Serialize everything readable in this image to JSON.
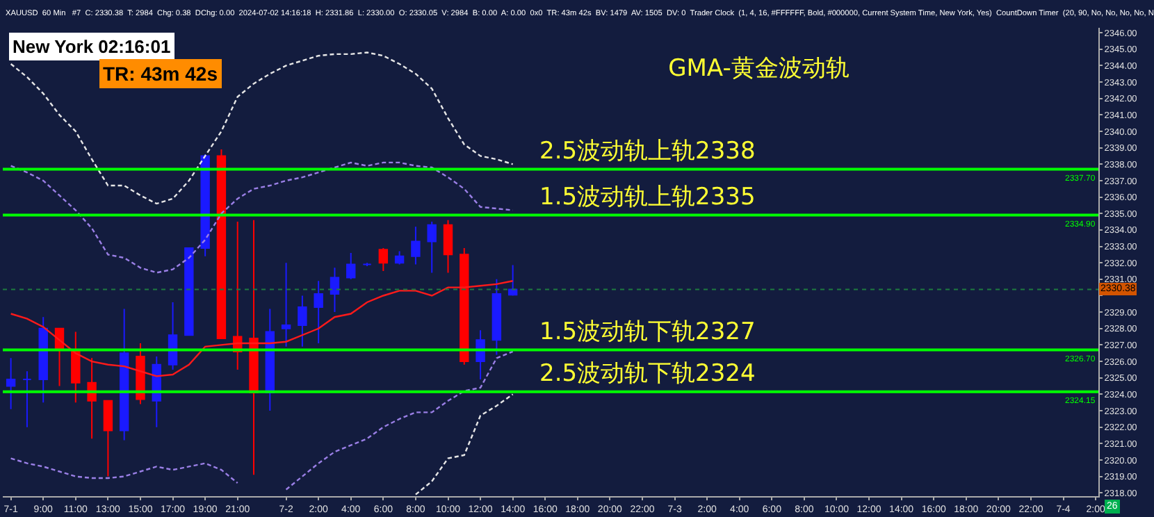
{
  "chart_data": {
    "type": "candlestick",
    "title": "GMA-黄金波动轨",
    "x": [
      "2024-07-01T07:00",
      "2024-07-01T08:00",
      "2024-07-01T09:00",
      "2024-07-01T10:00",
      "2024-07-01T11:00",
      "2024-07-01T12:00",
      "2024-07-01T13:00",
      "2024-07-01T14:00",
      "2024-07-01T15:00",
      "2024-07-01T16:00",
      "2024-07-01T17:00",
      "2024-07-01T18:00",
      "2024-07-01T19:00",
      "2024-07-01T20:00",
      "2024-07-01T21:00",
      "2024-07-01T22:00",
      "2024-07-01T23:00",
      "2024-07-02T00:00",
      "2024-07-02T01:00",
      "2024-07-02T02:00",
      "2024-07-02T03:00",
      "2024-07-02T04:00",
      "2024-07-02T05:00",
      "2024-07-02T06:00",
      "2024-07-02T07:00",
      "2024-07-02T08:00",
      "2024-07-02T09:00",
      "2024-07-02T10:00",
      "2024-07-02T11:00",
      "2024-07-02T12:00",
      "2024-07-02T13:00",
      "2024-07-02T14:00"
    ],
    "series": [
      {
        "color": "#1a1aff",
        "x": [
          "2024-07-01T07:00",
          "2024-07-01T08:00",
          "2024-07-01T09:00",
          "2024-07-01T14:00",
          "2024-07-01T16:00",
          "2024-07-01T17:00",
          "2024-07-01T18:00",
          "2024-07-01T19:00",
          "2024-07-01T23:00",
          "2024-07-02T00:00",
          "2024-07-02T01:00",
          "2024-07-02T02:00",
          "2024-07-02T03:00",
          "2024-07-02T04:00",
          "2024-07-02T05:00",
          "2024-07-02T07:00",
          "2024-07-02T08:00",
          "2024-07-02T09:00",
          "2024-07-02T12:00",
          "2024-07-02T13:00",
          "2024-07-02T14:00"
        ],
        "ohlc": [
          [
            2324.5,
            2326.2,
            2323.1,
            2324.9
          ],
          [
            2324.9,
            2325.4,
            2322.0,
            2324.9
          ],
          [
            2324.9,
            2328.7,
            2323.5,
            2328.0
          ],
          [
            2321.8,
            2329.2,
            2321.2,
            2326.5
          ],
          [
            2323.6,
            2326.3,
            2322.0,
            2325.8
          ],
          [
            2325.8,
            2329.6,
            2325.5,
            2327.6
          ],
          [
            2327.6,
            2332.9,
            2327.6,
            2332.9
          ],
          [
            2332.9,
            2338.6,
            2332.4,
            2338.5
          ],
          [
            2324.1,
            2329.2,
            2323.0,
            2327.8
          ],
          [
            2328.0,
            2332.0,
            2326.9,
            2328.2
          ],
          [
            2328.2,
            2330.0,
            2326.9,
            2329.3
          ],
          [
            2329.3,
            2330.9,
            2327.1,
            2330.1
          ],
          [
            2330.1,
            2331.7,
            2329.0,
            2331.1
          ],
          [
            2331.1,
            2332.6,
            2331.0,
            2331.9
          ],
          [
            2331.9,
            2332.0,
            2331.8,
            2331.9
          ],
          [
            2332.0,
            2332.7,
            2331.9,
            2332.4
          ],
          [
            2332.4,
            2334.2,
            2331.9,
            2333.3
          ],
          [
            2333.3,
            2334.5,
            2331.4,
            2334.3
          ],
          [
            2326.0,
            2327.9,
            2324.9,
            2327.3
          ],
          [
            2327.3,
            2331.0,
            2326.4,
            2330.1
          ],
          [
            2330.05,
            2331.86,
            2330.0,
            2330.38
          ]
        ]
      },
      {
        "color": "#ff0000",
        "x": [
          "2024-07-01T10:00",
          "2024-07-01T11:00",
          "2024-07-01T12:00",
          "2024-07-01T13:00",
          "2024-07-01T15:00",
          "2024-07-01T20:00",
          "2024-07-01T21:00",
          "2024-07-01T22:00",
          "2024-07-02T06:00",
          "2024-07-02T10:00",
          "2024-07-02T11:00"
        ],
        "ohlc": [
          [
            2328.0,
            2328.0,
            2324.5,
            2326.8
          ],
          [
            2326.7,
            2327.8,
            2323.5,
            2324.7
          ],
          [
            2324.7,
            2326.2,
            2321.3,
            2323.6
          ],
          [
            2323.6,
            2323.6,
            2319.0,
            2321.8
          ],
          [
            2326.3,
            2327.1,
            2323.4,
            2323.7
          ],
          [
            2338.5,
            2338.9,
            2327.4,
            2327.4
          ],
          [
            2327.5,
            2334.5,
            2325.5,
            2326.6
          ],
          [
            2327.4,
            2334.6,
            2319.1,
            2324.1
          ],
          [
            2332.8,
            2332.9,
            2331.5,
            2332.0
          ],
          [
            2334.3,
            2334.6,
            2331.4,
            2332.5
          ],
          [
            2332.5,
            2332.9,
            2325.8,
            2326.0
          ]
        ]
      },
      {
        "type": "line",
        "color": "#ff1a1a",
        "line_style": "solid",
        "values": [
          2328.9,
          2328.6,
          2328.1,
          2327.3,
          2326.5,
          2326.0,
          2325.8,
          2325.7,
          2325.4,
          2325.1,
          2325.2,
          2325.8,
          2326.9,
          2327.0,
          2327.1,
          2327.1,
          2327.1,
          2327.2,
          2327.6,
          2328.0,
          2328.7,
          2328.9,
          2329.6,
          2330.0,
          2330.3,
          2330.3,
          2330.0,
          2330.5,
          2330.5,
          2330.6,
          2330.7,
          2330.9
        ]
      },
      {
        "type": "line",
        "color": "#9a7fe6",
        "line_style": "dashed",
        "values": [
          2337.9,
          2337.5,
          2337.0,
          2336.1,
          2335.2,
          2334.1,
          2332.5,
          2332.3,
          2331.7,
          2331.4,
          2331.6,
          2332.3,
          2333.4,
          2335.0,
          2335.9,
          2336.5,
          2336.7,
          2337.0,
          2337.2,
          2337.5,
          2337.8,
          2338.1,
          2337.9,
          2338.1,
          2338.1,
          2337.9,
          2337.8,
          2337.2,
          2336.5,
          2335.4,
          2335.3,
          2335.2
        ]
      },
      {
        "type": "line",
        "color": "#9a7fe6",
        "line_style": "dashed",
        "values": [
          2320.1,
          2319.8,
          2319.6,
          2319.3,
          2319.0,
          2318.9,
          2318.9,
          2319.0,
          2319.3,
          2319.6,
          2319.4,
          2319.6,
          2319.8,
          2319.4,
          2318.6,
          null,
          null,
          2318.2,
          2319.0,
          2319.8,
          2320.5,
          2320.9,
          2321.3,
          2322.0,
          2322.5,
          2322.9,
          2322.9,
          2323.6,
          2324.2,
          2324.4,
          2326.2,
          2326.6
        ]
      },
      {
        "type": "line",
        "color": "#e6e6e6",
        "line_style": "dashed",
        "values": [
          2344.1,
          2343.3,
          2342.3,
          2341.0,
          2340.0,
          2338.3,
          2336.7,
          2336.7,
          2336.1,
          2335.6,
          2335.9,
          2337.0,
          2338.5,
          2340.0,
          2342.1,
          2342.9,
          2343.5,
          2344.0,
          2344.3,
          2344.6,
          2344.7,
          2344.7,
          2344.8,
          2344.6,
          2344.1,
          2343.5,
          2342.6,
          2340.8,
          2339.2,
          2338.5,
          2338.3,
          2338.0
        ]
      },
      {
        "type": "line",
        "color": "#e6e6e6",
        "line_style": "dashed",
        "values": [
          null,
          null,
          null,
          null,
          null,
          null,
          null,
          null,
          null,
          null,
          null,
          null,
          null,
          null,
          null,
          null,
          null,
          null,
          null,
          null,
          null,
          null,
          null,
          null,
          null,
          2317.9,
          2318.7,
          2320.1,
          2320.3,
          2322.7,
          2323.3,
          2324.0
        ]
      }
    ],
    "ylim": [
      2317.8,
      2346.3
    ],
    "yticks": [
      {
        "value": 2318,
        "label": "2318.00"
      },
      {
        "value": 2319,
        "label": "2319.00"
      },
      {
        "value": 2320,
        "label": "2320.00"
      },
      {
        "value": 2321,
        "label": "2321.00"
      },
      {
        "value": 2322,
        "label": "2322.00"
      },
      {
        "value": 2323,
        "label": "2323.00"
      },
      {
        "value": 2324,
        "label": "2324.00"
      },
      {
        "value": 2325,
        "label": "2325.00"
      },
      {
        "value": 2326,
        "label": "2326.00"
      },
      {
        "value": 2327,
        "label": "2327.00"
      },
      {
        "value": 2328,
        "label": "2328.00"
      },
      {
        "value": 2329,
        "label": "2329.00"
      },
      {
        "value": 2330,
        "label": null
      },
      {
        "value": 2331,
        "label": "2331.00"
      },
      {
        "value": 2332,
        "label": "2332.00"
      },
      {
        "value": 2333,
        "label": "2333.00"
      },
      {
        "value": 2334,
        "label": "2334.00"
      },
      {
        "value": 2335,
        "label": "2335.00"
      },
      {
        "value": 2336,
        "label": "2336.00"
      },
      {
        "value": 2337,
        "label": "2337.00"
      },
      {
        "value": 2338,
        "label": "2338.00"
      },
      {
        "value": 2339,
        "label": "2339.00"
      },
      {
        "value": 2340,
        "label": "2340.00"
      },
      {
        "value": 2341,
        "label": "2341.00"
      },
      {
        "value": 2342,
        "label": "2342.00"
      },
      {
        "value": 2343,
        "label": "2343.00"
      },
      {
        "value": 2344,
        "label": "2344.00"
      },
      {
        "value": 2345,
        "label": "2345.00"
      },
      {
        "value": 2346,
        "label": "2346.00"
      }
    ],
    "xlim": [
      "2024-07-01T06:30",
      "2024-07-04T02:10"
    ],
    "xticks": [
      {
        "value": "2024-07-01T07:00",
        "label": "7-1"
      },
      {
        "value": "2024-07-01T09:00",
        "label": "9:00"
      },
      {
        "value": "2024-07-01T11:00",
        "label": "11:00"
      },
      {
        "value": "2024-07-01T13:00",
        "label": "13:00"
      },
      {
        "value": "2024-07-01T15:00",
        "label": "15:00"
      },
      {
        "value": "2024-07-01T17:00",
        "label": "17:00"
      },
      {
        "value": "2024-07-01T19:00",
        "label": "19:00"
      },
      {
        "value": "2024-07-01T21:00",
        "label": "21:00"
      },
      {
        "value": "2024-07-02T00:00",
        "label": "7-2"
      },
      {
        "value": "2024-07-02T02:00",
        "label": "2:00"
      },
      {
        "value": "2024-07-02T04:00",
        "label": "4:00"
      },
      {
        "value": "2024-07-02T06:00",
        "label": "6:00"
      },
      {
        "value": "2024-07-02T08:00",
        "label": "8:00"
      },
      {
        "value": "2024-07-02T10:00",
        "label": "10:00"
      },
      {
        "value": "2024-07-02T12:00",
        "label": "12:00"
      },
      {
        "value": "2024-07-02T14:00",
        "label": "14:00"
      },
      {
        "value": "2024-07-02T16:00",
        "label": "16:00"
      },
      {
        "value": "2024-07-02T18:00",
        "label": "18:00"
      },
      {
        "value": "2024-07-02T20:00",
        "label": "20:00"
      },
      {
        "value": "2024-07-02T22:00",
        "label": "22:00"
      },
      {
        "value": "2024-07-03T00:00",
        "label": "7-3"
      },
      {
        "value": "2024-07-03T02:00",
        "label": "2:00"
      },
      {
        "value": "2024-07-03T04:00",
        "label": "4:00"
      },
      {
        "value": "2024-07-03T06:00",
        "label": "6:00"
      },
      {
        "value": "2024-07-03T08:00",
        "label": "8:00"
      },
      {
        "value": "2024-07-03T10:00",
        "label": "10:00"
      },
      {
        "value": "2024-07-03T12:00",
        "label": "12:00"
      },
      {
        "value": "2024-07-03T14:00",
        "label": "14:00"
      },
      {
        "value": "2024-07-03T16:00",
        "label": "16:00"
      },
      {
        "value": "2024-07-03T18:00",
        "label": "18:00"
      },
      {
        "value": "2024-07-03T20:00",
        "label": "20:00"
      },
      {
        "value": "2024-07-03T22:00",
        "label": "22:00"
      },
      {
        "value": "2024-07-04T00:00",
        "label": "7-4"
      },
      {
        "value": "2024-07-04T02:00",
        "label": "2:00"
      }
    ],
    "ref_lines": [
      {
        "axis": "y",
        "value": 2337.7,
        "label": "2337.70",
        "color": "#00ff00",
        "line_style": "solid"
      },
      {
        "axis": "y",
        "value": 2334.9,
        "label": "2334.90",
        "color": "#00ff00",
        "line_style": "solid"
      },
      {
        "axis": "y",
        "value": 2326.7,
        "label": "2326.70",
        "color": "#00ff00",
        "line_style": "solid"
      },
      {
        "axis": "y",
        "value": 2324.15,
        "label": "2324.15",
        "color": "#00ff00",
        "line_style": "solid"
      },
      {
        "axis": "y",
        "value": 2330.38,
        "label": "2330.38",
        "color": "#1f7a3f",
        "line_style": "dotted"
      }
    ],
    "annotations": [
      "XAUUSD  60 Min   #7  C: 2330.38  T: 2984  Chg: 0.38  DChg: 0.00  2024-07-02 14:16:18  H: 2331.86  L: 2330.00  O: 2330.05  V: 2984  B: 0.00  A: 0.00  0x0  TR: 43m 42s  BV: 1479  AV: 1505  DV: 0  Trader Clock  (1, 4, 16, #FFFFFF, Bold, #000000, Current System Time, New York, Yes)  CountDown Timer  (20, 90, No, No, No, No, N",
      "New York 02:16:01",
      "TR: 43m 42s",
      "26",
      {
        "text": "2.5波动轨上轨2338",
        "x": "2024-07-02T15:30",
        "y": 2337.7
      },
      {
        "text": "1.5波动轨上轨2335",
        "x": "2024-07-02T15:30",
        "y": 2334.9
      },
      {
        "text": "1.5波动轨下轨2327",
        "x": "2024-07-02T15:30",
        "y": 2326.7
      },
      {
        "text": "2.5波动轨下轨2324",
        "x": "2024-07-02T15:30",
        "y": 2324.15
      }
    ]
  }
}
